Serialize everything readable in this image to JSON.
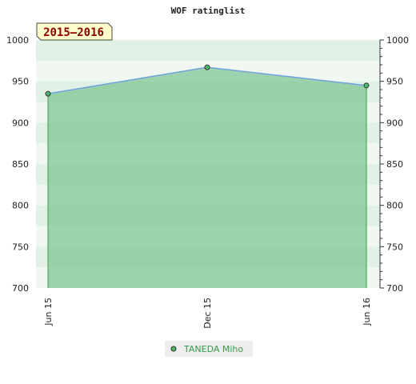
{
  "chart_data": {
    "type": "area",
    "title": "WOF ratinglist",
    "season_label": "2015–2016",
    "x": [
      "Jun 15",
      "Dec 15",
      "Jun 16"
    ],
    "series": [
      {
        "name": "TANEDA Miho",
        "values": [
          935,
          967,
          945
        ]
      }
    ],
    "ylim": [
      700,
      1000
    ],
    "y_ticks": [
      700,
      750,
      800,
      850,
      900,
      950,
      1000
    ],
    "y_axis_both_sides": true,
    "legend_position": "bottom",
    "colors": {
      "line": "#6fa3e0",
      "area": "#7cc490",
      "marker_fill": "#4db86a",
      "legend_bg": "#eeeeee",
      "season_bg": "#ffffcc"
    }
  }
}
